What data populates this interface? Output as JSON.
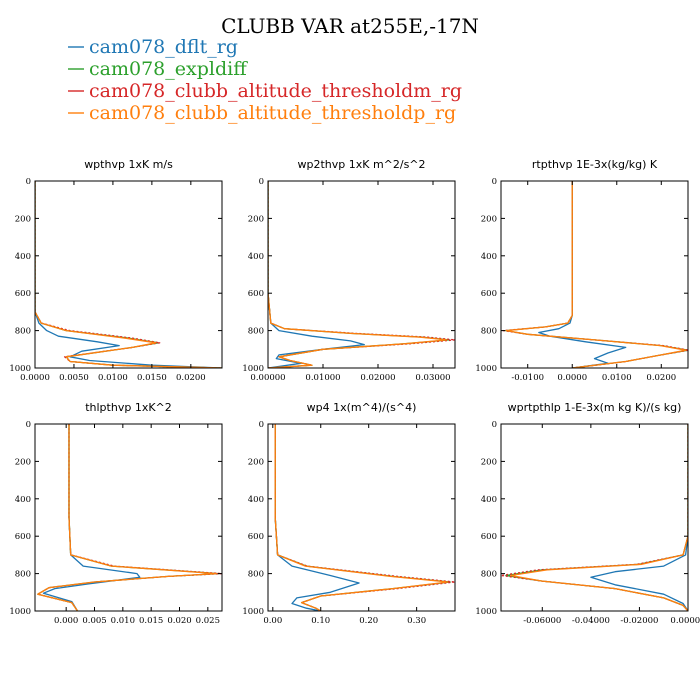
{
  "figure_title": "CLUBB VAR at255E,-17N",
  "legend": [
    {
      "name": "cam078_dflt_rg",
      "color": "#1f77b4",
      "dash": ""
    },
    {
      "name": "cam078_expldiff",
      "color": "#2ca02c",
      "dash": ""
    },
    {
      "name": "cam078_clubb_altitude_thresholdm_rg",
      "color": "#d62728",
      "dash": "2,2"
    },
    {
      "name": "cam078_clubb_altitude_thresholdp_rg",
      "color": "#ff7f0e",
      "dash": ""
    }
  ],
  "chart_data": [
    {
      "type": "line",
      "title": "wpthvp   1xK m/s",
      "xlim": [
        0,
        0.024
      ],
      "ylim": [
        1000,
        0
      ],
      "xticks": [
        0,
        0.005,
        0.01,
        0.015,
        0.02
      ],
      "xtick_labels": [
        "0.0000",
        "0.0050",
        "0.0100",
        "0.0150",
        "0.0200"
      ],
      "yticks": [
        0,
        200,
        400,
        600,
        800,
        1000
      ],
      "ytick_labels": [
        "0",
        "200",
        "400",
        "600",
        "800",
        "1000"
      ],
      "series": [
        {
          "name": "cam078_dflt_rg",
          "x": [
            0,
            0,
            0,
            0.0005,
            0.0015,
            0.003,
            0.008,
            0.0108,
            0.006,
            0.0045,
            0.007,
            0.015,
            0.024
          ],
          "y": [
            0,
            500,
            700,
            760,
            800,
            830,
            860,
            880,
            910,
            940,
            960,
            985,
            1000
          ]
        },
        {
          "name": "cam078_expldiff",
          "x": [
            0,
            0,
            0,
            0.0008,
            0.004,
            0.012,
            0.0158,
            0.0125,
            0.004,
            0.0045,
            0.01,
            0.024
          ],
          "y": [
            0,
            500,
            700,
            760,
            800,
            840,
            865,
            890,
            940,
            965,
            985,
            1000
          ]
        },
        {
          "name": "cam078_clubb_altitude_thresholdm_rg",
          "x": [
            0,
            0,
            0,
            0.0008,
            0.0045,
            0.0125,
            0.016,
            0.0125,
            0.0038,
            0.0045,
            0.01,
            0.024
          ],
          "y": [
            0,
            500,
            700,
            760,
            800,
            840,
            865,
            890,
            940,
            965,
            985,
            1000
          ]
        },
        {
          "name": "cam078_clubb_altitude_thresholdp_rg",
          "x": [
            0,
            0,
            0,
            0.0008,
            0.004,
            0.0115,
            0.0155,
            0.0125,
            0.004,
            0.0045,
            0.01,
            0.024
          ],
          "y": [
            0,
            500,
            700,
            760,
            800,
            840,
            865,
            890,
            940,
            965,
            985,
            1000
          ]
        }
      ]
    },
    {
      "type": "line",
      "title": "wp2thvp   1xK m^2/s^2",
      "xlim": [
        0,
        0.034
      ],
      "ylim": [
        1000,
        0
      ],
      "xticks": [
        0,
        0.01,
        0.02,
        0.03
      ],
      "xtick_labels": [
        "0.00000",
        "0.01000",
        "0.02000",
        "0.03000"
      ],
      "yticks": [
        0,
        200,
        400,
        600,
        800,
        1000
      ],
      "ytick_labels": [
        "0",
        "200",
        "400",
        "600",
        "800",
        "1000"
      ],
      "series": [
        {
          "name": "cam078_dflt_rg",
          "x": [
            0,
            0,
            0.0005,
            0.002,
            0.008,
            0.015,
            0.0175,
            0.01,
            0.002,
            0.0015,
            0.006,
            0.0
          ],
          "y": [
            0,
            600,
            760,
            800,
            830,
            855,
            875,
            900,
            930,
            950,
            975,
            1000
          ]
        },
        {
          "name": "cam078_expldiff",
          "x": [
            0,
            0,
            0.0005,
            0.003,
            0.015,
            0.028,
            0.033,
            0.025,
            0.01,
            0.002,
            0.004,
            0.008,
            0.0
          ],
          "y": [
            0,
            600,
            760,
            790,
            815,
            835,
            850,
            870,
            900,
            940,
            960,
            985,
            1000
          ]
        },
        {
          "name": "cam078_clubb_altitude_thresholdm_rg",
          "x": [
            0,
            0,
            0.0005,
            0.003,
            0.016,
            0.029,
            0.034,
            0.026,
            0.01,
            0.002,
            0.004,
            0.008,
            0.0
          ],
          "y": [
            0,
            600,
            760,
            790,
            815,
            835,
            850,
            870,
            900,
            940,
            960,
            985,
            1000
          ]
        },
        {
          "name": "cam078_clubb_altitude_thresholdp_rg",
          "x": [
            0,
            0,
            0.0005,
            0.003,
            0.015,
            0.0275,
            0.0325,
            0.025,
            0.01,
            0.002,
            0.004,
            0.008,
            0.0
          ],
          "y": [
            0,
            600,
            760,
            790,
            815,
            835,
            850,
            870,
            900,
            940,
            960,
            985,
            1000
          ]
        }
      ]
    },
    {
      "type": "line",
      "title": "rtpthvp   1E-3x(kg/kg) K",
      "xlim": [
        -0.016,
        0.026
      ],
      "ylim": [
        1000,
        0
      ],
      "xticks": [
        -0.01,
        0,
        0.01,
        0.02
      ],
      "xtick_labels": [
        "-0.0100",
        "0.0000",
        "0.0100",
        "0.0200"
      ],
      "yticks": [
        0,
        200,
        400,
        600,
        800,
        1000
      ],
      "ytick_labels": [
        "0",
        "200",
        "400",
        "600",
        "800",
        "1000"
      ],
      "series": [
        {
          "name": "cam078_dflt_rg",
          "x": [
            0,
            0,
            0,
            -0.0005,
            -0.003,
            -0.0075,
            -0.005,
            0.003,
            0.012,
            0.008,
            0.005,
            0.008,
            0.0
          ],
          "y": [
            0,
            500,
            720,
            760,
            790,
            810,
            830,
            860,
            890,
            920,
            950,
            975,
            1000
          ]
        },
        {
          "name": "cam078_expldiff",
          "x": [
            0,
            0,
            0,
            -0.001,
            -0.006,
            -0.015,
            -0.01,
            0.005,
            0.02,
            0.026,
            0.02,
            0.012,
            0.0
          ],
          "y": [
            0,
            500,
            720,
            760,
            780,
            800,
            820,
            850,
            880,
            905,
            930,
            965,
            1000
          ]
        },
        {
          "name": "cam078_clubb_altitude_thresholdm_rg",
          "x": [
            0,
            0,
            0,
            -0.001,
            -0.006,
            -0.0155,
            -0.01,
            0.005,
            0.0205,
            0.0262,
            0.02,
            0.012,
            0.0
          ],
          "y": [
            0,
            500,
            720,
            760,
            780,
            800,
            820,
            850,
            880,
            905,
            930,
            965,
            1000
          ]
        },
        {
          "name": "cam078_clubb_altitude_thresholdp_rg",
          "x": [
            0,
            0,
            0,
            -0.001,
            -0.006,
            -0.0148,
            -0.01,
            0.005,
            0.0198,
            0.0255,
            0.02,
            0.012,
            0.0
          ],
          "y": [
            0,
            500,
            720,
            760,
            780,
            800,
            820,
            850,
            880,
            905,
            930,
            965,
            1000
          ]
        }
      ]
    },
    {
      "type": "line",
      "title": "thlpthvp   1xK^2",
      "xlim": [
        -0.0055,
        0.0275
      ],
      "ylim": [
        1000,
        0
      ],
      "xticks": [
        0,
        0.005,
        0.01,
        0.015,
        0.02,
        0.025
      ],
      "xtick_labels": [
        "0.000",
        "0.005",
        "0.010",
        "0.015",
        "0.020",
        "0.025"
      ],
      "yticks": [
        0,
        200,
        400,
        600,
        800,
        1000
      ],
      "ytick_labels": [
        "0",
        "200",
        "400",
        "600",
        "800",
        "1000"
      ],
      "series": [
        {
          "name": "cam078_dflt_rg",
          "x": [
            0.0005,
            0.0005,
            0.0008,
            0.003,
            0.0125,
            0.013,
            0.004,
            -0.002,
            -0.004,
            0.001,
            0.002
          ],
          "y": [
            0,
            500,
            700,
            760,
            800,
            820,
            855,
            880,
            905,
            950,
            1000
          ]
        },
        {
          "name": "cam078_expldiff",
          "x": [
            0.0005,
            0.0005,
            0.0008,
            0.008,
            0.027,
            0.018,
            0.005,
            -0.003,
            -0.005,
            0.001,
            0.002
          ],
          "y": [
            0,
            500,
            700,
            760,
            800,
            815,
            845,
            875,
            910,
            955,
            1000
          ]
        },
        {
          "name": "cam078_clubb_altitude_thresholdm_rg",
          "x": [
            0.0005,
            0.0005,
            0.0008,
            0.0085,
            0.0275,
            0.018,
            0.005,
            -0.003,
            -0.005,
            0.001,
            0.002
          ],
          "y": [
            0,
            500,
            700,
            760,
            800,
            815,
            845,
            875,
            910,
            955,
            1000
          ]
        },
        {
          "name": "cam078_clubb_altitude_thresholdp_rg",
          "x": [
            0.0005,
            0.0005,
            0.0008,
            0.008,
            0.0265,
            0.018,
            0.005,
            -0.003,
            -0.005,
            0.001,
            0.002
          ],
          "y": [
            0,
            500,
            700,
            760,
            800,
            815,
            845,
            875,
            910,
            955,
            1000
          ]
        }
      ]
    },
    {
      "type": "line",
      "title": "wp4   1x(m^4)/(s^4)",
      "xlim": [
        -0.01,
        0.38
      ],
      "ylim": [
        1000,
        0
      ],
      "xticks": [
        0,
        0.1,
        0.2,
        0.3
      ],
      "xtick_labels": [
        "0.00",
        "0.10",
        "0.20",
        "0.30"
      ],
      "yticks": [
        0,
        200,
        400,
        600,
        800,
        1000
      ],
      "ytick_labels": [
        "0",
        "200",
        "400",
        "600",
        "800",
        "1000"
      ],
      "series": [
        {
          "name": "cam078_dflt_rg",
          "x": [
            0.005,
            0.005,
            0.01,
            0.04,
            0.12,
            0.18,
            0.12,
            0.05,
            0.04,
            0.07,
            0.1
          ],
          "y": [
            0,
            500,
            700,
            760,
            810,
            850,
            900,
            930,
            960,
            985,
            1000
          ]
        },
        {
          "name": "cam078_expldiff",
          "x": [
            0.005,
            0.005,
            0.01,
            0.07,
            0.25,
            0.37,
            0.25,
            0.1,
            0.06,
            0.09,
            0.1
          ],
          "y": [
            0,
            500,
            700,
            760,
            815,
            845,
            880,
            920,
            955,
            985,
            1000
          ]
        },
        {
          "name": "cam078_clubb_altitude_thresholdm_rg",
          "x": [
            0.005,
            0.005,
            0.01,
            0.072,
            0.26,
            0.38,
            0.26,
            0.1,
            0.06,
            0.09,
            0.1
          ],
          "y": [
            0,
            500,
            700,
            760,
            815,
            845,
            880,
            920,
            955,
            985,
            1000
          ]
        },
        {
          "name": "cam078_clubb_altitude_thresholdp_rg",
          "x": [
            0.005,
            0.005,
            0.01,
            0.068,
            0.245,
            0.365,
            0.25,
            0.1,
            0.06,
            0.09,
            0.1
          ],
          "y": [
            0,
            500,
            700,
            760,
            815,
            845,
            880,
            920,
            955,
            985,
            1000
          ]
        }
      ]
    },
    {
      "type": "line",
      "title": "wprtpthlp   1-E-3x(m kg K)/(s kg)",
      "xlim": [
        -0.077,
        0.0
      ],
      "ylim": [
        1000,
        0
      ],
      "xticks": [
        -0.06,
        -0.04,
        -0.02,
        0
      ],
      "xtick_labels": [
        "-0.06000",
        "-0.04000",
        "-0.02000",
        "0.00000"
      ],
      "yticks": [
        0,
        200,
        400,
        600,
        800,
        1000
      ],
      "ytick_labels": [
        "0",
        "200",
        "400",
        "600",
        "800",
        "1000"
      ],
      "series": [
        {
          "name": "cam078_dflt_rg",
          "x": [
            0,
            0,
            -0.001,
            -0.01,
            -0.03,
            -0.04,
            -0.03,
            -0.01,
            -0.002,
            0
          ],
          "y": [
            0,
            600,
            700,
            760,
            790,
            820,
            860,
            910,
            960,
            1000
          ]
        },
        {
          "name": "cam078_expldiff",
          "x": [
            0,
            0,
            -0.002,
            -0.02,
            -0.06,
            -0.075,
            -0.06,
            -0.03,
            -0.01,
            -0.002,
            0
          ],
          "y": [
            0,
            600,
            700,
            750,
            780,
            810,
            840,
            880,
            930,
            970,
            1000
          ]
        },
        {
          "name": "cam078_clubb_altitude_thresholdm_rg",
          "x": [
            0,
            0,
            -0.002,
            -0.021,
            -0.062,
            -0.077,
            -0.06,
            -0.03,
            -0.01,
            -0.002,
            0
          ],
          "y": [
            0,
            600,
            700,
            750,
            780,
            810,
            840,
            880,
            930,
            970,
            1000
          ]
        },
        {
          "name": "cam078_clubb_altitude_thresholdp_rg",
          "x": [
            0,
            0,
            -0.002,
            -0.019,
            -0.058,
            -0.073,
            -0.06,
            -0.03,
            -0.01,
            -0.002,
            0
          ],
          "y": [
            0,
            600,
            700,
            750,
            780,
            810,
            840,
            880,
            930,
            970,
            1000
          ]
        }
      ]
    }
  ]
}
